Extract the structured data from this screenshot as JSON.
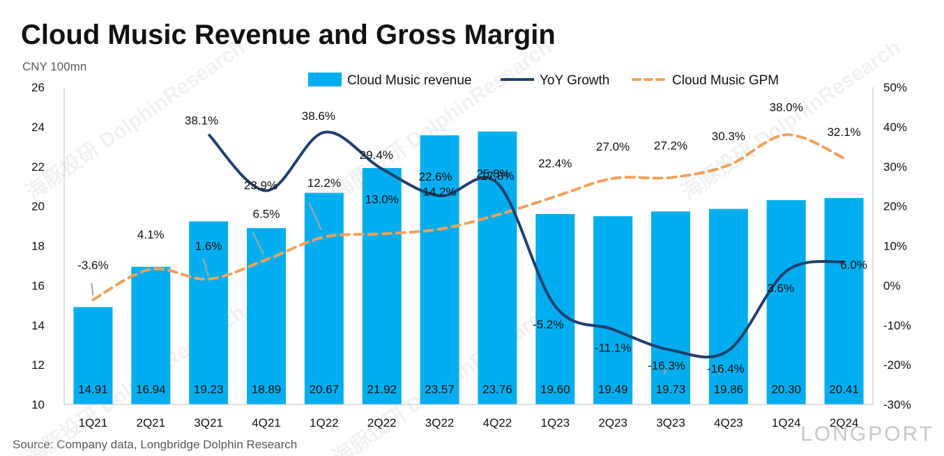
{
  "chart_data": {
    "type": "bar",
    "title": "Cloud Music Revenue and Gross Margin",
    "subtitle": "CNY 100mn",
    "source": "Source: Company data, Longbridge Dolphin Research",
    "categories": [
      "1Q21",
      "2Q21",
      "3Q21",
      "4Q21",
      "1Q22",
      "2Q22",
      "3Q22",
      "4Q22",
      "1Q23",
      "2Q23",
      "3Q23",
      "4Q23",
      "1Q24",
      "2Q24"
    ],
    "series": [
      {
        "name": "Cloud Music revenue",
        "type": "bar",
        "axis": "left",
        "color": "#00aeef",
        "values": [
          14.91,
          16.94,
          19.23,
          18.89,
          20.67,
          21.92,
          23.57,
          23.76,
          19.6,
          19.49,
          19.73,
          19.86,
          20.3,
          20.41
        ],
        "labels": [
          "14.91",
          "16.94",
          "19.23",
          "18.89",
          "20.67",
          "21.92",
          "23.57",
          "23.76",
          "19.60",
          "19.49",
          "19.73",
          "19.86",
          "20.30",
          "20.41"
        ]
      },
      {
        "name": "YoY Growth",
        "type": "line",
        "axis": "right",
        "color": "#1f3f6e",
        "values": [
          null,
          null,
          38.1,
          23.9,
          38.6,
          29.4,
          22.6,
          25.8,
          -5.2,
          -11.1,
          -16.3,
          -16.4,
          3.6,
          6.0
        ],
        "labels": [
          null,
          null,
          "38.1%",
          "23.9%",
          "38.6%",
          "29.4%",
          "22.6%",
          "25.8%",
          "-5.2%",
          "-11.1%",
          "-16.3%",
          "-16.4%",
          "3.6%",
          "6.0%"
        ]
      },
      {
        "name": "Cloud Music GPM",
        "type": "line",
        "axis": "right",
        "dashed": true,
        "color": "#f5a05a",
        "values": [
          -3.6,
          4.1,
          1.6,
          6.5,
          12.2,
          13.0,
          14.2,
          17.8,
          22.4,
          27.0,
          27.2,
          30.3,
          38.0,
          32.1
        ],
        "labels": [
          "-3.6%",
          "4.1%",
          "1.6%",
          "6.5%",
          "12.2%",
          "13.0%",
          "14.2%",
          "17.8%",
          "22.4%",
          "27.0%",
          "27.2%",
          "30.3%",
          "38.0%",
          "32.1%"
        ]
      }
    ],
    "yleft": {
      "min": 10,
      "max": 26,
      "step": 2,
      "ticks": [
        "10",
        "12",
        "14",
        "16",
        "18",
        "20",
        "22",
        "24",
        "26"
      ]
    },
    "yright": {
      "min": -30,
      "max": 50,
      "step": 10,
      "ticks": [
        "-30%",
        "-20%",
        "-10%",
        "0%",
        "10%",
        "20%",
        "30%",
        "40%",
        "50%"
      ]
    },
    "legend_position": "top-right"
  },
  "watermark": {
    "cn": "海豚投研",
    "en": "DolphinResearch",
    "brand": "LONGPORT"
  }
}
